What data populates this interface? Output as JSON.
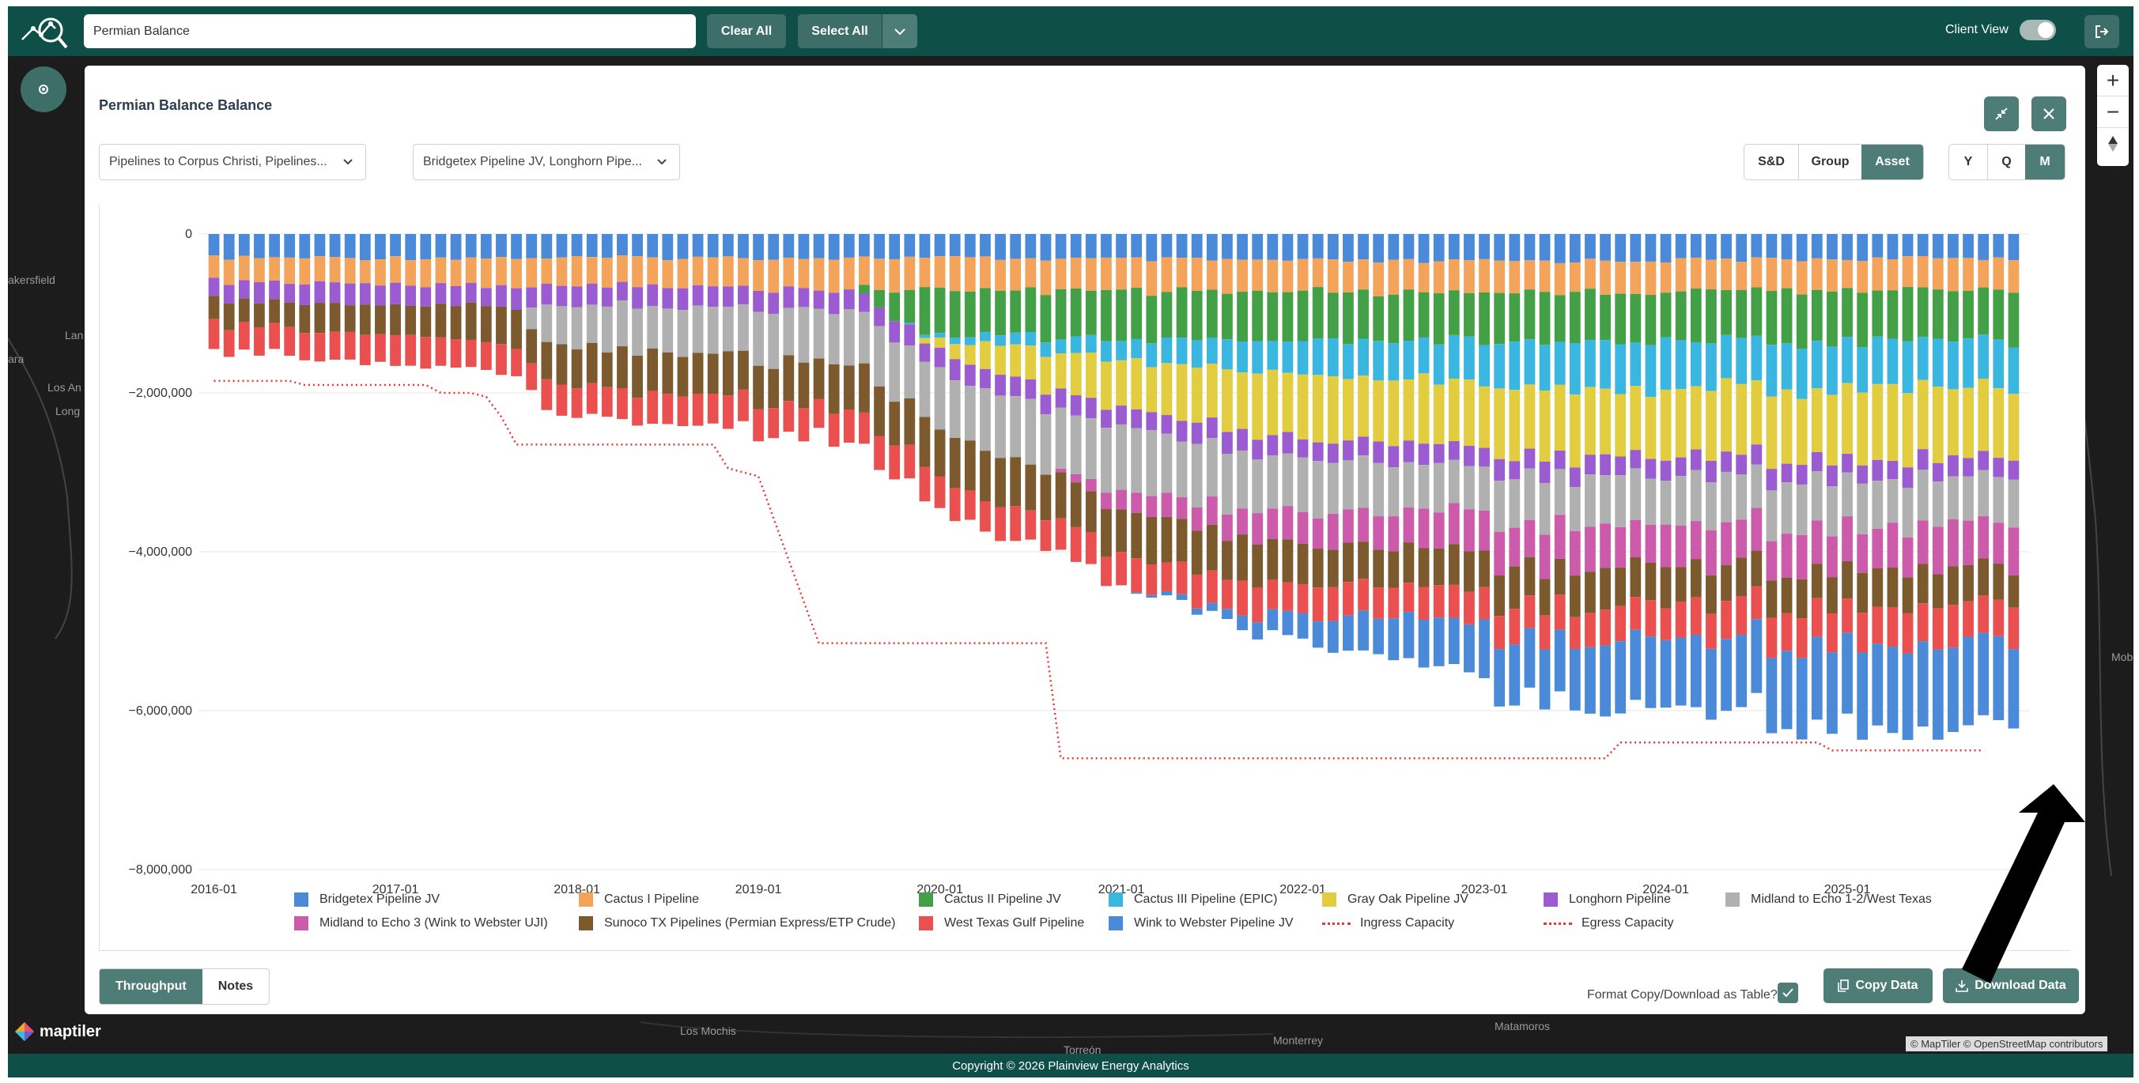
{
  "header": {
    "search_value": "Permian Balance",
    "clear_all": "Clear All",
    "select_all": "Select All",
    "client_view": "Client View"
  },
  "map": {
    "labels": [
      "akersfield",
      "Lan",
      "ara",
      "Los An",
      "Long",
      "Los Mochis",
      "Torreón",
      "Monterrey",
      "Matamoros",
      "Mob"
    ],
    "brand": "maptiler",
    "attribution": "© MapTiler © OpenStreetMap contributors"
  },
  "footer": {
    "copyright": "Copyright © 2026 Plainview Energy Analytics"
  },
  "panel": {
    "title": "Permian Balance Balance",
    "dropdown1": "Pipelines to Corpus Christi, Pipelines...",
    "dropdown2": "Bridgetex Pipeline JV, Longhorn Pipe...",
    "view_toggle": [
      "S&D",
      "Group",
      "Asset"
    ],
    "view_active": "Asset",
    "period_toggle": [
      "Y",
      "Q",
      "M"
    ],
    "period_active": "M",
    "tabs": [
      "Throughput",
      "Notes"
    ],
    "tab_active": "Throughput",
    "format_label": "Format Copy/Download as Table?",
    "copy_label": "Copy Data",
    "download_label": "Download Data"
  },
  "chart_data": {
    "type": "bar",
    "stacked": true,
    "title": "",
    "xlabel": "",
    "ylabel": "",
    "ylim": [
      -8000000,
      0
    ],
    "yticks": [
      0,
      -2000000,
      -4000000,
      -6000000,
      -8000000
    ],
    "ytick_labels": [
      "0",
      "−2,000,000",
      "−4,000,000",
      "−6,000,000",
      "−8,000,000"
    ],
    "xtick_labels": [
      "2016-01",
      "2017-01",
      "2018-01",
      "2019-01",
      "2020-01",
      "2021-01",
      "2022-01",
      "2023-01",
      "2024-01",
      "2025-01"
    ],
    "x_start": "2016-01",
    "x_end": "2025-12",
    "grid": true,
    "legend_position": "bottom",
    "series": [
      {
        "name": "Bridgetex Pipeline JV",
        "color": "#4a8ad8",
        "anchors": [
          [
            0,
            300000
          ],
          [
            47,
            300000
          ],
          [
            80,
            350000
          ],
          [
            119,
            300000
          ]
        ]
      },
      {
        "name": "Cactus I Pipeline",
        "color": "#f4a45a",
        "anchors": [
          [
            0,
            300000
          ],
          [
            47,
            400000
          ],
          [
            80,
            400000
          ],
          [
            119,
            380000
          ]
        ]
      },
      {
        "name": "Cactus II Pipeline JV",
        "color": "#43a047",
        "anchors": [
          [
            0,
            0
          ],
          [
            42,
            0
          ],
          [
            47,
            550000
          ],
          [
            60,
            600000
          ],
          [
            80,
            600000
          ],
          [
            119,
            650000
          ]
        ]
      },
      {
        "name": "Cactus III Pipeline (EPIC)",
        "color": "#3ab7e0",
        "anchors": [
          [
            0,
            0
          ],
          [
            45,
            0
          ],
          [
            50,
            100000
          ],
          [
            70,
            400000
          ],
          [
            90,
            600000
          ],
          [
            119,
            600000
          ]
        ]
      },
      {
        "name": "Gray Oak Pipeline JV",
        "color": "#e2cc3f",
        "anchors": [
          [
            0,
            0
          ],
          [
            46,
            0
          ],
          [
            52,
            400000
          ],
          [
            70,
            800000
          ],
          [
            90,
            850000
          ],
          [
            119,
            900000
          ]
        ]
      },
      {
        "name": "Longhorn Pipeline",
        "color": "#9a5cd0",
        "anchors": [
          [
            0,
            250000
          ],
          [
            47,
            250000
          ],
          [
            80,
            250000
          ],
          [
            119,
            250000
          ]
        ]
      },
      {
        "name": "Midland to Echo 1-2/West Texas",
        "color": "#b0b0b0",
        "anchors": [
          [
            0,
            0
          ],
          [
            20,
            0
          ],
          [
            22,
            500000
          ],
          [
            45,
            700000
          ],
          [
            60,
            800000
          ],
          [
            80,
            600000
          ],
          [
            119,
            600000
          ]
        ]
      },
      {
        "name": "Midland to Echo 3 (Wink to Webster UJI)",
        "color": "#cc5bab",
        "anchors": [
          [
            0,
            0
          ],
          [
            55,
            0
          ],
          [
            60,
            250000
          ],
          [
            80,
            500000
          ],
          [
            119,
            550000
          ]
        ]
      },
      {
        "name": "Sunoco TX Pipelines (Permian Express/ETP Crude)",
        "color": "#7d5a2d",
        "anchors": [
          [
            0,
            300000
          ],
          [
            20,
            450000
          ],
          [
            47,
            600000
          ],
          [
            80,
            500000
          ],
          [
            119,
            450000
          ]
        ]
      },
      {
        "name": "West Texas Gulf Pipeline",
        "color": "#ea5050",
        "anchors": [
          [
            0,
            350000
          ],
          [
            47,
            400000
          ],
          [
            80,
            400000
          ],
          [
            119,
            500000
          ]
        ]
      },
      {
        "name": "Wink to Webster Pipeline JV",
        "color": "#4a8ad8",
        "anchors": [
          [
            0,
            0
          ],
          [
            60,
            0
          ],
          [
            66,
            100000
          ],
          [
            80,
            600000
          ],
          [
            100,
            1000000
          ],
          [
            119,
            1050000
          ]
        ]
      }
    ],
    "lines": [
      {
        "name": "Ingress Capacity",
        "color": "#e53935",
        "style": "dotted",
        "steps": [
          [
            0,
            -1850000
          ],
          [
            5,
            -1850000
          ],
          [
            6,
            -1900000
          ],
          [
            14,
            -1900000
          ],
          [
            15,
            -2000000
          ],
          [
            17,
            -2000000
          ],
          [
            18,
            -2050000
          ],
          [
            19,
            -2300000
          ],
          [
            20,
            -2650000
          ],
          [
            33,
            -2650000
          ],
          [
            34,
            -2950000
          ],
          [
            36,
            -3050000
          ],
          [
            40,
            -5150000
          ],
          [
            55,
            -5150000
          ],
          [
            56,
            -6600000
          ],
          [
            92,
            -6600000
          ],
          [
            93,
            -6400000
          ],
          [
            106,
            -6400000
          ],
          [
            107,
            -6500000
          ],
          [
            117,
            -6500000
          ]
        ]
      },
      {
        "name": "Egress Capacity",
        "color": "#e53935",
        "style": "dotted",
        "steps": []
      }
    ]
  },
  "legend": [
    [
      "Bridgetex Pipeline JV",
      "#4a8ad8",
      "swatch"
    ],
    [
      "Cactus I Pipeline",
      "#f4a45a",
      "swatch"
    ],
    [
      "Cactus II Pipeline JV",
      "#43a047",
      "swatch"
    ],
    [
      "Cactus III Pipeline (EPIC)",
      "#3ab7e0",
      "swatch"
    ],
    [
      "Gray Oak Pipeline JV",
      "#e2cc3f",
      "swatch"
    ],
    [
      "Longhorn Pipeline",
      "#9a5cd0",
      "swatch"
    ],
    [
      "Midland to Echo 1-2/West Texas",
      "#b0b0b0",
      "swatch"
    ],
    [
      "Midland to Echo 3 (Wink to Webster UJI)",
      "#cc5bab",
      "swatch"
    ],
    [
      "Sunoco TX Pipelines (Permian Express/ETP Crude)",
      "#7d5a2d",
      "swatch"
    ],
    [
      "West Texas Gulf Pipeline",
      "#ea5050",
      "swatch"
    ],
    [
      "Wink to Webster Pipeline JV",
      "#4a8ad8",
      "swatch"
    ],
    [
      "Ingress Capacity",
      "#e53935",
      "dotted"
    ],
    [
      "Egress Capacity",
      "#e53935",
      "dotted"
    ]
  ]
}
